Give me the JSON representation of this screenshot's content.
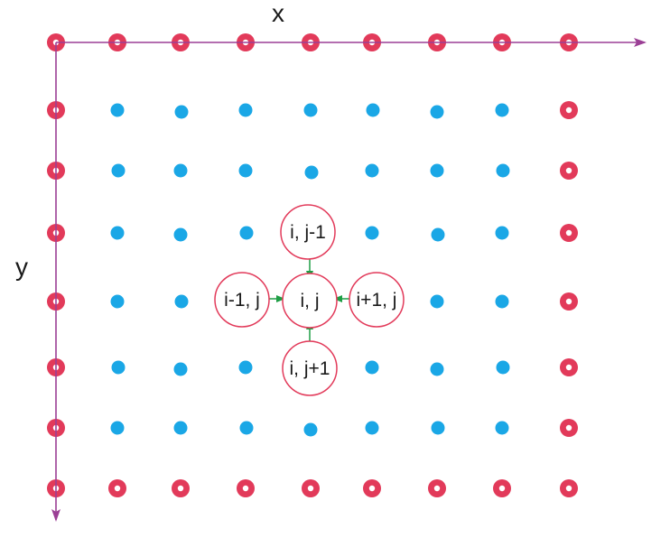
{
  "axes": {
    "x_label": "x",
    "y_label": "y",
    "axis_color": "#9b3f95"
  },
  "grid": {
    "columns": 9,
    "rows": 8,
    "boundary_color": "#e23a5a",
    "interior_color": "#1aa7e6"
  },
  "stencil": {
    "ring_color": "#e23a5a",
    "arrow_color": "#1e9e45",
    "center": {
      "label": "i, j"
    },
    "neighbors": [
      {
        "key": "top",
        "label": "i, j-1"
      },
      {
        "key": "left",
        "label": "i-1, j"
      },
      {
        "key": "right",
        "label": "i+1, j"
      },
      {
        "key": "bottom",
        "label": "i, j+1"
      }
    ]
  }
}
